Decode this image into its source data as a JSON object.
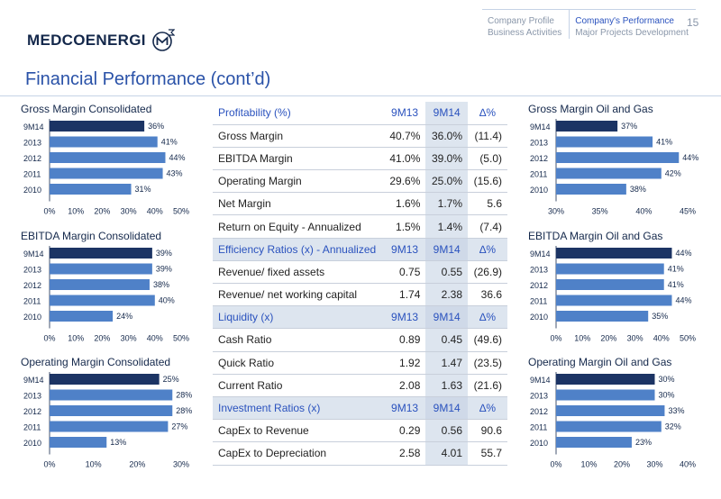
{
  "header": {
    "logo_text": "MEDCOENERGI",
    "logo_icon": "medco-m-sigma-logo",
    "nav": [
      {
        "items": [
          "Company Profile",
          "Business Activities"
        ]
      },
      {
        "items": [
          "Company's Performance",
          "Major Projects Development"
        ]
      }
    ],
    "page_number": "15"
  },
  "page_title": "Financial Performance (cont’d)",
  "colors": {
    "bar_dark": "#1c3464",
    "bar_light": "#4f81c8",
    "accent": "#2a52be"
  },
  "chart_data": [
    {
      "type": "bar",
      "orientation": "horizontal",
      "title": "Gross Margin Consolidated",
      "categories": [
        "9M14",
        "2013",
        "2012",
        "2011",
        "2010"
      ],
      "values": [
        36,
        41,
        44,
        43,
        31
      ],
      "value_labels": [
        "36%",
        "41%",
        "44%",
        "43%",
        "31%"
      ],
      "xlim": [
        0,
        50
      ],
      "ticks": [
        "0%",
        "10%",
        "20%",
        "30%",
        "40%",
        "50%"
      ]
    },
    {
      "type": "bar",
      "orientation": "horizontal",
      "title": "EBITDA Margin Consolidated",
      "categories": [
        "9M14",
        "2013",
        "2012",
        "2011",
        "2010"
      ],
      "values": [
        39,
        39,
        38,
        40,
        24
      ],
      "value_labels": [
        "39%",
        "39%",
        "38%",
        "40%",
        "24%"
      ],
      "xlim": [
        0,
        50
      ],
      "ticks": [
        "0%",
        "10%",
        "20%",
        "30%",
        "40%",
        "50%"
      ]
    },
    {
      "type": "bar",
      "orientation": "horizontal",
      "title": "Operating Margin Consolidated",
      "categories": [
        "9M14",
        "2013",
        "2012",
        "2011",
        "2010"
      ],
      "values": [
        25,
        28,
        28,
        27,
        13
      ],
      "value_labels": [
        "25%",
        "28%",
        "28%",
        "27%",
        "13%"
      ],
      "xlim": [
        0,
        30
      ],
      "ticks": [
        "0%",
        "10%",
        "20%",
        "30%"
      ]
    },
    {
      "type": "bar",
      "orientation": "horizontal",
      "title": "Gross Margin Oil and Gas",
      "categories": [
        "9M14",
        "2013",
        "2012",
        "2011",
        "2010"
      ],
      "values": [
        37,
        41,
        44,
        42,
        38
      ],
      "value_labels": [
        "37%",
        "41%",
        "44%",
        "42%",
        "38%"
      ],
      "xlim": [
        30,
        45
      ],
      "ticks": [
        "30%",
        "35%",
        "40%",
        "45%"
      ]
    },
    {
      "type": "bar",
      "orientation": "horizontal",
      "title": "EBITDA Margin Oil and Gas",
      "categories": [
        "9M14",
        "2013",
        "2012",
        "2011",
        "2010"
      ],
      "values": [
        44,
        41,
        41,
        44,
        35
      ],
      "value_labels": [
        "44%",
        "41%",
        "41%",
        "44%",
        "35%"
      ],
      "xlim": [
        0,
        50
      ],
      "ticks": [
        "0%",
        "10%",
        "20%",
        "30%",
        "40%",
        "50%"
      ]
    },
    {
      "type": "bar",
      "orientation": "horizontal",
      "title": "Operating Margin Oil and Gas",
      "categories": [
        "9M14",
        "2013",
        "2012",
        "2011",
        "2010"
      ],
      "values": [
        30,
        30,
        33,
        32,
        23
      ],
      "value_labels": [
        "30%",
        "30%",
        "33%",
        "32%",
        "23%"
      ],
      "xlim": [
        0,
        40
      ],
      "ticks": [
        "0%",
        "10%",
        "20%",
        "30%",
        "40%"
      ]
    }
  ],
  "table": {
    "sections": [
      {
        "header": [
          "Profitability (%)",
          "9M13",
          "9M14",
          "∆%"
        ],
        "band": false,
        "rows": [
          [
            "Gross Margin",
            "40.7%",
            "36.0%",
            "(11.4)"
          ],
          [
            "EBITDA Margin",
            "41.0%",
            "39.0%",
            "(5.0)"
          ],
          [
            "Operating Margin",
            "29.6%",
            "25.0%",
            "(15.6)"
          ],
          [
            "Net Margin",
            "1.6%",
            "1.7%",
            "5.6"
          ],
          [
            "Return on Equity - Annualized",
            "1.5%",
            "1.4%",
            "(7.4)"
          ]
        ]
      },
      {
        "header": [
          "Efficiency Ratios (x) - Annualized",
          "9M13",
          "9M14",
          "∆%"
        ],
        "band": true,
        "rows": [
          [
            "Revenue/ fixed assets",
            "0.75",
            "0.55",
            "(26.9)"
          ],
          [
            "Revenue/ net working capital",
            "1.74",
            "2.38",
            "36.6"
          ]
        ]
      },
      {
        "header": [
          "Liquidity (x)",
          "9M13",
          "9M14",
          "∆%"
        ],
        "band": true,
        "rows": [
          [
            "Cash Ratio",
            "0.89",
            "0.45",
            "(49.6)"
          ],
          [
            "Quick Ratio",
            "1.92",
            "1.47",
            "(23.5)"
          ],
          [
            "Current Ratio",
            "2.08",
            "1.63",
            "(21.6)"
          ]
        ]
      },
      {
        "header": [
          "Investment Ratios (x)",
          "9M13",
          "9M14",
          "∆%"
        ],
        "band": true,
        "rows": [
          [
            "CapEx to Revenue",
            "0.29",
            "0.56",
            "90.6"
          ],
          [
            "CapEx to Depreciation",
            "2.58",
            "4.01",
            "55.7"
          ]
        ]
      }
    ]
  }
}
